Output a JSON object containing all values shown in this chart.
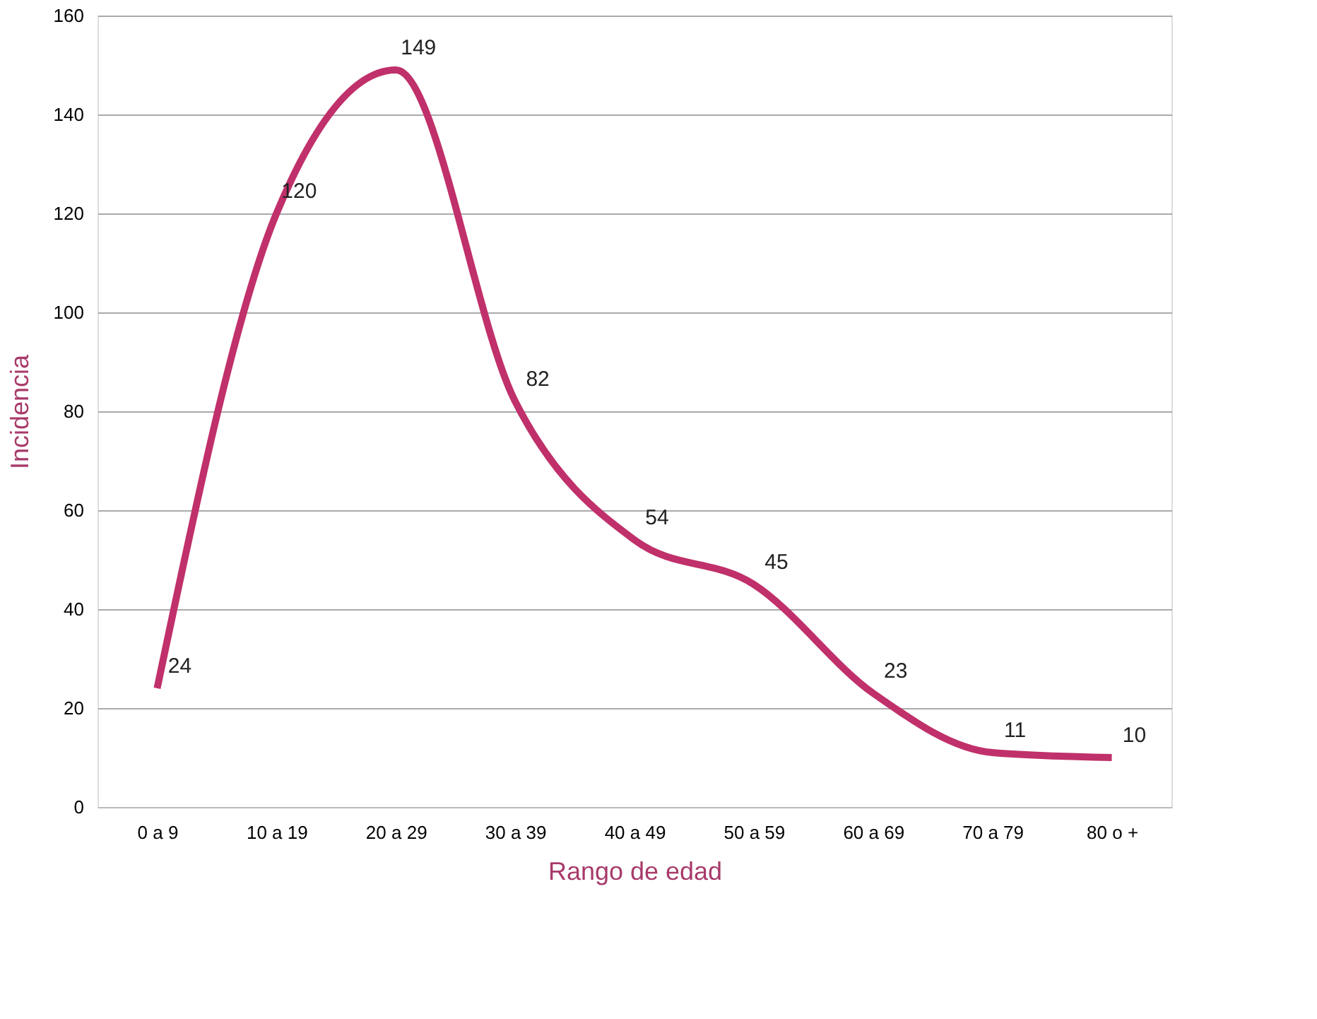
{
  "chart_data": {
    "type": "line",
    "xlabel": "Rango de edad",
    "ylabel": "Incidencia",
    "categories": [
      "0 a 9",
      "10 a 19",
      "20 a 29",
      "30 a 39",
      "40 a 49",
      "50 a 59",
      "60 a 69",
      "70 a 79",
      "80 o +"
    ],
    "series": [
      {
        "color": "#c0306a",
        "values": [
          24,
          120,
          149,
          82,
          54,
          45,
          23,
          11,
          10
        ]
      }
    ],
    "ylim": [
      0,
      160
    ],
    "yticks": [
      0,
      20,
      40,
      60,
      80,
      100,
      120,
      140,
      160
    ],
    "grid": "y",
    "data_labels": true,
    "marker": "none",
    "line_style": "solid"
  }
}
